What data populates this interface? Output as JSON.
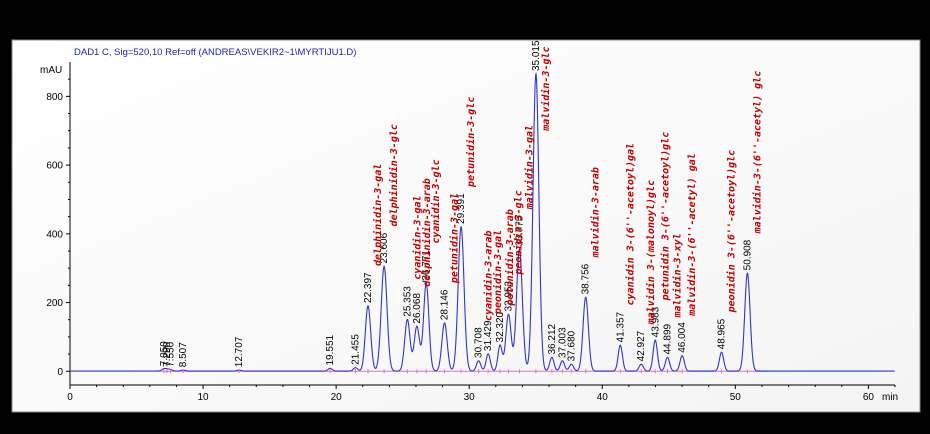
{
  "header_text": "DAD1 C, Sig=520,10 Ref=off (ANDREAS\\VEKIR2~1\\MYRTIJU1.D)",
  "chart_data": {
    "type": "line",
    "y_unit": "mAU",
    "x_unit": "min",
    "xlim": [
      0,
      62
    ],
    "ylim": [
      -40,
      900
    ],
    "x_ticks": [
      0,
      10,
      20,
      30,
      40,
      50,
      60
    ],
    "y_ticks": [
      0,
      200,
      400,
      600,
      800
    ],
    "series_color": "#2f35c8",
    "baseline_color": "#e070c0",
    "label_color": "#c00000",
    "peaks": [
      {
        "rt": "7.050",
        "x": 7.05,
        "h": 6
      },
      {
        "rt": "7.290",
        "x": 7.29,
        "h": 4
      },
      {
        "rt": "7.550",
        "x": 7.55,
        "h": 4
      },
      {
        "rt": "8.507",
        "x": 8.507,
        "h": 3
      },
      {
        "rt": "12.707",
        "x": 12.707,
        "h": 3
      },
      {
        "rt": "19.551",
        "x": 19.551,
        "h": 8
      },
      {
        "rt": "21.455",
        "x": 21.455,
        "h": 10
      },
      {
        "rt": "22.397",
        "x": 22.397,
        "h": 190
      },
      {
        "rt": "23.606",
        "x": 23.606,
        "h": 305
      },
      {
        "rt": "25.353",
        "x": 25.353,
        "h": 150
      },
      {
        "rt": "26.068",
        "x": 26.068,
        "h": 130
      },
      {
        "rt": "26.771",
        "x": 26.771,
        "h": 255
      },
      {
        "rt": "28.146",
        "x": 28.146,
        "h": 140
      },
      {
        "rt": "29.391",
        "x": 29.391,
        "h": 420
      },
      {
        "rt": "30.708",
        "x": 30.708,
        "h": 30
      },
      {
        "rt": "31.429",
        "x": 31.429,
        "h": 50
      },
      {
        "rt": "32.320",
        "x": 32.32,
        "h": 75
      },
      {
        "rt": "32.953",
        "x": 32.953,
        "h": 165
      },
      {
        "rt": "33.775",
        "x": 33.775,
        "h": 355
      },
      {
        "rt": "35.015",
        "x": 35.015,
        "h": 865
      },
      {
        "rt": "36.212",
        "x": 36.212,
        "h": 40
      },
      {
        "rt": "37.003",
        "x": 37.003,
        "h": 30
      },
      {
        "rt": "37.680",
        "x": 37.68,
        "h": 20
      },
      {
        "rt": "38.756",
        "x": 38.756,
        "h": 215
      },
      {
        "rt": "41.357",
        "x": 41.357,
        "h": 75
      },
      {
        "rt": "42.927",
        "x": 42.927,
        "h": 20
      },
      {
        "rt": "43.983",
        "x": 43.983,
        "h": 90
      },
      {
        "rt": "44.899",
        "x": 44.899,
        "h": 40
      },
      {
        "rt": "46.004",
        "x": 46.004,
        "h": 45
      },
      {
        "rt": "48.965",
        "x": 48.965,
        "h": 55
      },
      {
        "rt": "50.908",
        "x": 50.908,
        "h": 285
      }
    ],
    "compound_labels": [
      {
        "text": "delphinidin-3-gal",
        "x": 22.397
      },
      {
        "text": "delphinidin-3-glc",
        "x": 23.606
      },
      {
        "text": "cyanidin-3-gal",
        "x": 25.353
      },
      {
        "text": "delphinidin-3-arab",
        "x": 26.068
      },
      {
        "text": "cyanidin-3-glc",
        "x": 26.771
      },
      {
        "text": "petunidin-3-gal",
        "x": 28.146
      },
      {
        "text": "petunidin-3-glc",
        "x": 29.391
      },
      {
        "text": "cyanidin-3-arab",
        "x": 30.708
      },
      {
        "text": "peonidin-3-gal",
        "x": 31.429
      },
      {
        "text": "petunidin-3-arab",
        "x": 32.32
      },
      {
        "text": "peonidin-3-glc",
        "x": 32.953
      },
      {
        "text": "malvidin-3-gal",
        "x": 33.775
      },
      {
        "text": "malvidin-3-glc",
        "x": 35.015
      },
      {
        "text": "malvidin-3-arab",
        "x": 38.756
      },
      {
        "text": "cyanidin 3-(6''-acetoyl)gal",
        "x": 41.357
      },
      {
        "text": "malvidin 3-(malonoyl)glc",
        "x": 42.927
      },
      {
        "text": "petunidin 3-(6''-acetoyl)glc",
        "x": 43.983
      },
      {
        "text": "malvidin-3-xyl",
        "x": 44.899
      },
      {
        "text": "malvidin-3-(6''-acetyl) gal",
        "x": 46.004
      },
      {
        "text": "peonidin 3-(6''-acetoyl)glc",
        "x": 48.965
      },
      {
        "text": "malvidin-3-(6''-acetyl) glc",
        "x": 50.908
      }
    ]
  }
}
